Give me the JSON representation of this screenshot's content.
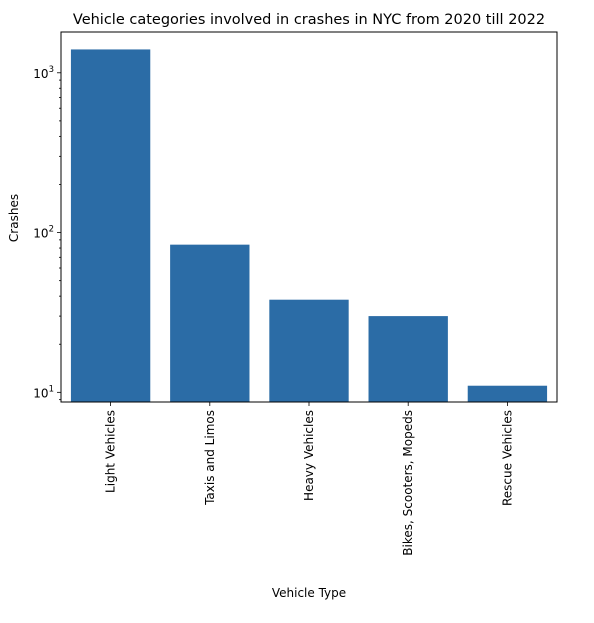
{
  "chart_data": {
    "type": "bar",
    "title": "Vehicle categories involved in crashes in NYC from 2020 till 2022",
    "xlabel": "Vehicle Type",
    "ylabel": "Crashes",
    "y_scale": "log",
    "ylim": [
      8.7,
      1800
    ],
    "y_ticks": [
      {
        "value": 10,
        "exponent": "1"
      },
      {
        "value": 100,
        "exponent": "2"
      },
      {
        "value": 1000,
        "exponent": "3"
      }
    ],
    "y_tick_base": "10",
    "grid": false,
    "bar_color": "#2b6ca6",
    "categories": [
      "Light Vehicles",
      "Taxis and Limos",
      "Heavy Vehicles",
      "Bikes, Scooters, Mopeds",
      "Rescue Vehicles"
    ],
    "values": [
      1400,
      84,
      38,
      30,
      11
    ]
  }
}
